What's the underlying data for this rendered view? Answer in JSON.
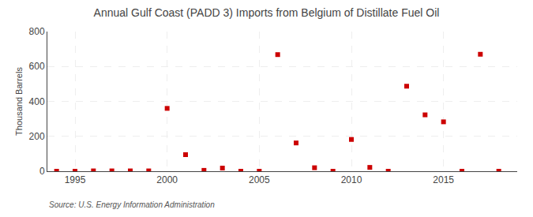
{
  "chart_data": {
    "type": "scatter",
    "title": "Annual Gulf Coast (PADD 3) Imports from Belgium of Distillate Fuel Oil",
    "ylabel": "Thousand Barrels",
    "annotations": [
      "Source: U.S. Energy Information Administration"
    ],
    "x": [
      1994,
      1995,
      1996,
      1997,
      1998,
      1999,
      2000,
      2001,
      2002,
      2003,
      2004,
      2005,
      2006,
      2007,
      2008,
      2009,
      2010,
      2011,
      2012,
      2013,
      2014,
      2015,
      2016,
      2017,
      2018
    ],
    "values": [
      0,
      0,
      2,
      2,
      2,
      2,
      360,
      95,
      5,
      18,
      0,
      0,
      668,
      162,
      20,
      0,
      182,
      22,
      0,
      487,
      323,
      283,
      0,
      670,
      0
    ],
    "color": "#cc0000",
    "marker": "square",
    "xlim": [
      1993.5,
      2019
    ],
    "xticks": [
      1995,
      2000,
      2005,
      2010,
      2015
    ],
    "ylim": [
      0,
      800
    ],
    "yticks": [
      0,
      200,
      400,
      600,
      800
    ],
    "grid": true
  }
}
